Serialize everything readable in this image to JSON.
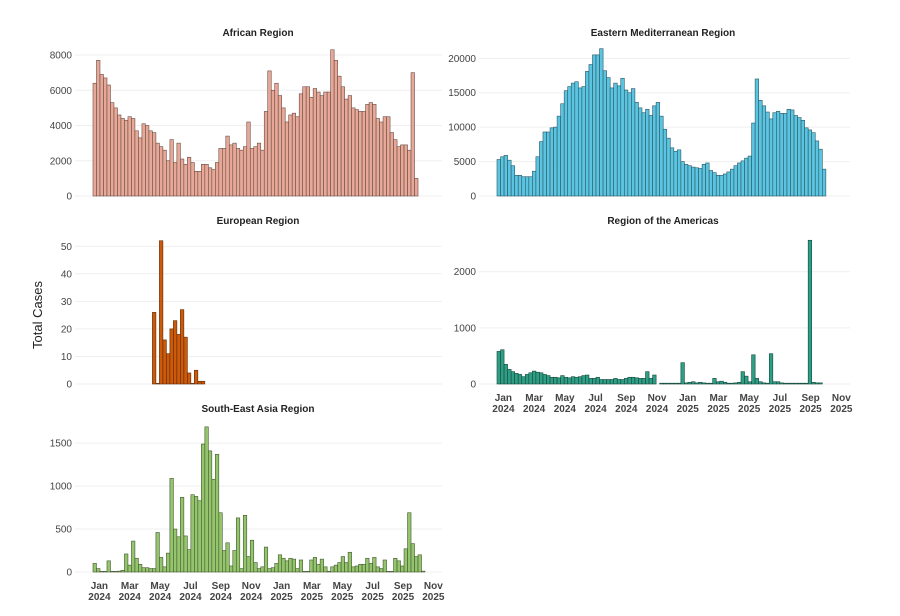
{
  "chart_data": {
    "type": "bar",
    "ylabel": "Total Cases",
    "x_tick_labels": [
      [
        "Jan",
        "2024"
      ],
      [
        "Mar",
        "2024"
      ],
      [
        "May",
        "2024"
      ],
      [
        "Jul",
        "2024"
      ],
      [
        "Sep",
        "2024"
      ],
      [
        "Nov",
        "2024"
      ],
      [
        "Jan",
        "2025"
      ],
      [
        "Mar",
        "2025"
      ],
      [
        "May",
        "2025"
      ],
      [
        "Jul",
        "2025"
      ],
      [
        "Sep",
        "2025"
      ],
      [
        "Nov",
        "2025"
      ]
    ],
    "x_unit": "week",
    "x_start": "2023-12-31",
    "grid": true,
    "legend": "none",
    "panels": [
      {
        "title": "African Region",
        "color": "#E8A898",
        "ylim": [
          0,
          8400
        ],
        "yticks": [
          0,
          2000,
          4000,
          6000,
          8000
        ],
        "start_week": 0,
        "values": [
          6400,
          7700,
          6900,
          6700,
          6300,
          5300,
          5000,
          4600,
          4400,
          4300,
          4500,
          4400,
          3700,
          3300,
          4100,
          4000,
          3700,
          3600,
          3000,
          2800,
          2600,
          2000,
          3200,
          1900,
          3000,
          2100,
          1800,
          2200,
          1900,
          1400,
          1400,
          1800,
          1800,
          1600,
          1500,
          1900,
          2700,
          2700,
          3400,
          2900,
          3000,
          2700,
          2600,
          2800,
          4200,
          2700,
          2800,
          3000,
          2600,
          4800,
          7100,
          6000,
          6400,
          5700,
          5000,
          4200,
          4600,
          4700,
          4500,
          5800,
          6200,
          6200,
          5600,
          6100,
          5900,
          5700,
          5900,
          5900,
          8300,
          7700,
          6800,
          6200,
          5500,
          5700,
          5000,
          4900,
          4800,
          4800,
          5200,
          5300,
          5200,
          4400,
          4200,
          4500,
          4500,
          3600,
          3200,
          2800,
          2900,
          2900,
          2600,
          7000,
          1000
        ]
      },
      {
        "title": "Eastern Mediterranean Region",
        "color": "#5BC4E0",
        "ylim": [
          0,
          21500
        ],
        "yticks": [
          0,
          5000,
          10000,
          15000,
          20000
        ],
        "start_week": 0,
        "values": [
          5300,
          5700,
          5900,
          5200,
          4400,
          3000,
          3000,
          2800,
          2800,
          2800,
          3600,
          5700,
          7900,
          9300,
          9300,
          9900,
          10000,
          11600,
          13400,
          15300,
          15900,
          16400,
          16600,
          15700,
          15900,
          18100,
          19100,
          20500,
          20500,
          21400,
          18200,
          17200,
          15700,
          16400,
          16000,
          17100,
          15400,
          15000,
          15600,
          13600,
          12800,
          12100,
          12600,
          11700,
          13100,
          13600,
          11600,
          9700,
          8400,
          7000,
          6500,
          6700,
          5000,
          4600,
          4400,
          4200,
          4100,
          4000,
          4600,
          4800,
          3700,
          3400,
          3000,
          3000,
          3200,
          3500,
          3900,
          4400,
          4800,
          5100,
          5500,
          5800,
          10600,
          17000,
          13900,
          13100,
          12200,
          11200,
          12100,
          12300,
          12000,
          12000,
          12600,
          12500,
          11700,
          11400,
          11000,
          9900,
          9600,
          9200,
          8000,
          6800,
          3900
        ]
      },
      {
        "title": "European Region",
        "color": "#CC5A0A",
        "ylim": [
          0,
          53
        ],
        "yticks": [
          0,
          10,
          20,
          30,
          40,
          50
        ],
        "start_week": 17,
        "values": [
          26,
          0,
          52,
          16,
          11,
          20,
          23,
          18,
          27,
          17,
          4,
          0,
          5,
          1,
          1
        ]
      },
      {
        "title": "Region of the Americas",
        "color": "#2E9E85",
        "ylim": [
          0,
          2600
        ],
        "yticks": [
          0,
          1000,
          2000
        ],
        "start_week": 0,
        "values": [
          580,
          610,
          350,
          260,
          220,
          190,
          170,
          130,
          170,
          200,
          230,
          210,
          200,
          170,
          150,
          120,
          120,
          110,
          150,
          120,
          110,
          130,
          120,
          130,
          150,
          160,
          100,
          100,
          120,
          80,
          80,
          80,
          80,
          100,
          80,
          80,
          100,
          120,
          120,
          110,
          100,
          100,
          220,
          100,
          160,
          null,
          5,
          5,
          5,
          5,
          5,
          5,
          380,
          20,
          30,
          40,
          20,
          30,
          20,
          10,
          10,
          100,
          40,
          50,
          30,
          10,
          10,
          20,
          30,
          220,
          140,
          40,
          520,
          100,
          40,
          20,
          10,
          540,
          40,
          40,
          20,
          5,
          5,
          5,
          5,
          5,
          5,
          5,
          2560,
          30,
          20,
          20
        ]
      },
      {
        "title": "South-East Asia Region",
        "color": "#94C46C",
        "ylim": [
          0,
          1700
        ],
        "yticks": [
          0,
          500,
          1000,
          1500
        ],
        "start_week": 0,
        "values": [
          100,
          40,
          0,
          0,
          130,
          0,
          0,
          10,
          20,
          210,
          80,
          360,
          160,
          90,
          50,
          50,
          40,
          40,
          460,
          170,
          60,
          220,
          1090,
          500,
          410,
          870,
          420,
          260,
          900,
          880,
          830,
          1490,
          1690,
          1410,
          1080,
          1370,
          690,
          250,
          340,
          70,
          250,
          630,
          40,
          660,
          180,
          370,
          110,
          40,
          60,
          290,
          40,
          50,
          100,
          200,
          160,
          130,
          160,
          150,
          40,
          140,
          0,
          0,
          140,
          170,
          90,
          150,
          60,
          0,
          60,
          80,
          110,
          180,
          110,
          230,
          60,
          70,
          90,
          90,
          160,
          100,
          170,
          60,
          40,
          140,
          0,
          0,
          160,
          130,
          70,
          270,
          690,
          330,
          180,
          200,
          10
        ]
      }
    ]
  }
}
